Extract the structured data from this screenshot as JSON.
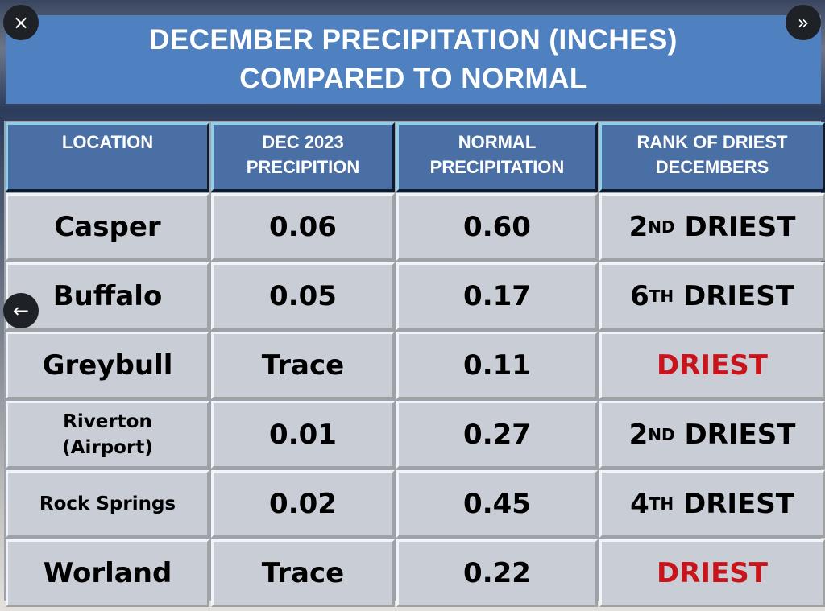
{
  "viewer": {
    "close_icon": "×",
    "next_icon": "»",
    "prev_icon": "←"
  },
  "title": {
    "line1": "DECEMBER PRECIPITATION (INCHES)",
    "line2": "COMPARED TO NORMAL"
  },
  "headers": [
    {
      "l1": "LOCATION",
      "l2": ""
    },
    {
      "l1": "DEC 2023",
      "l2": "PRECIPITION"
    },
    {
      "l1": "NORMAL",
      "l2": "PRECIPITATION"
    },
    {
      "l1": "RANK OF DRIEST",
      "l2": "DECEMBERS"
    }
  ],
  "rows": [
    {
      "location": "Casper",
      "dec2023": "0.06",
      "normal": "0.60",
      "rank_num": "2",
      "rank_sup": "ND",
      "rank_word": "DRIEST"
    },
    {
      "location": "Buffalo",
      "dec2023": "0.05",
      "normal": "0.17",
      "rank_num": "6",
      "rank_sup": "TH",
      "rank_word": "DRIEST"
    },
    {
      "location": "Greybull",
      "dec2023": "Trace",
      "normal": "0.11",
      "rank_num": "",
      "rank_sup": "",
      "rank_word": "DRIEST"
    },
    {
      "location": "Riverton (Airport)",
      "dec2023": "0.01",
      "normal": "0.27",
      "rank_num": "2",
      "rank_sup": "ND",
      "rank_word": "DRIEST"
    },
    {
      "location": "Rock Springs",
      "dec2023": "0.02",
      "normal": "0.45",
      "rank_num": "4",
      "rank_sup": "TH",
      "rank_word": "DRIEST"
    },
    {
      "location": "Worland",
      "dec2023": "Trace",
      "normal": "0.22",
      "rank_num": "",
      "rank_sup": "",
      "rank_word": "DRIEST"
    }
  ],
  "colors": {
    "banner": "#4f81c0",
    "header": "#4a6fa5",
    "driest_red": "#c8141a"
  }
}
